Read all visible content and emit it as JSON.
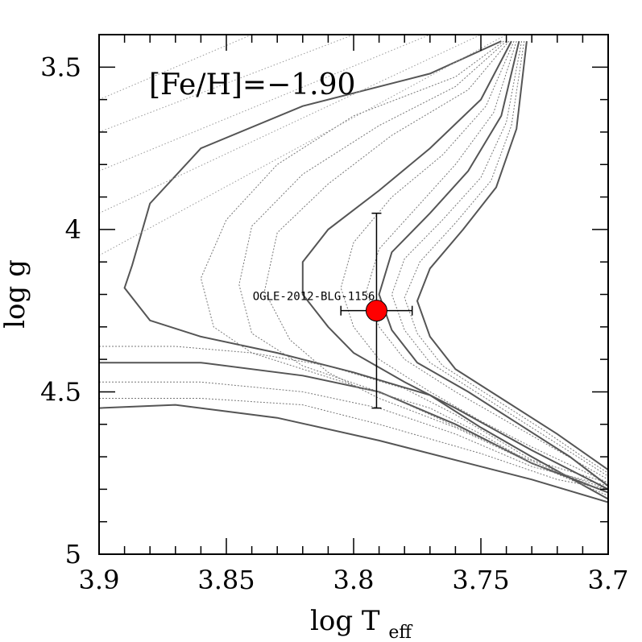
{
  "chart_data": {
    "type": "line",
    "xlabel": "log T",
    "xlabel_sub": "eff",
    "ylabel": "log g",
    "xlim": [
      3.9,
      3.7
    ],
    "ylim": [
      5.0,
      3.4
    ],
    "x_ticks": [
      3.9,
      3.85,
      3.8,
      3.75,
      3.7
    ],
    "x_tick_labels": [
      "3.9",
      "3.85",
      "3.8",
      "3.75",
      "3.7"
    ],
    "y_ticks": [
      3.5,
      4.0,
      4.5,
      5.0
    ],
    "y_tick_labels": [
      "3.5",
      "4",
      "4.5",
      "5"
    ],
    "annotation": "[Fe/H]=−1.90",
    "isochrones": [
      {
        "style": "solid",
        "points": [
          [
            3.9,
            4.55
          ],
          [
            3.87,
            4.54
          ],
          [
            3.83,
            4.58
          ],
          [
            3.79,
            4.65
          ],
          [
            3.75,
            4.73
          ],
          [
            3.73,
            4.77
          ],
          [
            3.7,
            4.84
          ]
        ]
      },
      {
        "style": "dotted",
        "points": [
          [
            3.9,
            4.52
          ],
          [
            3.86,
            4.52
          ],
          [
            3.82,
            4.54
          ],
          [
            3.79,
            4.6
          ],
          [
            3.75,
            4.69
          ],
          [
            3.72,
            4.77
          ],
          [
            3.7,
            4.8
          ]
        ]
      },
      {
        "style": "dotted",
        "points": [
          [
            3.9,
            4.47
          ],
          [
            3.86,
            4.47
          ],
          [
            3.82,
            4.5
          ],
          [
            3.79,
            4.55
          ],
          [
            3.76,
            4.63
          ],
          [
            3.73,
            4.73
          ],
          [
            3.7,
            4.79
          ]
        ]
      },
      {
        "style": "solid",
        "points": [
          [
            3.9,
            4.41
          ],
          [
            3.86,
            4.41
          ],
          [
            3.82,
            4.45
          ],
          [
            3.79,
            4.5
          ],
          [
            3.76,
            4.6
          ],
          [
            3.73,
            4.72
          ],
          [
            3.7,
            4.81
          ]
        ]
      },
      {
        "style": "dotted",
        "points": [
          [
            3.9,
            4.36
          ],
          [
            3.87,
            4.36
          ],
          [
            3.84,
            4.38
          ],
          [
            3.81,
            4.42
          ],
          [
            3.78,
            4.49
          ],
          [
            3.76,
            4.57
          ],
          [
            3.73,
            4.71
          ],
          [
            3.7,
            4.78
          ]
        ]
      },
      {
        "style": "solid",
        "points": [
          [
            3.742,
            3.42
          ],
          [
            3.77,
            3.52
          ],
          [
            3.82,
            3.62
          ],
          [
            3.86,
            3.75
          ],
          [
            3.88,
            3.92
          ],
          [
            3.887,
            4.11
          ],
          [
            3.89,
            4.18
          ],
          [
            3.88,
            4.28
          ],
          [
            3.86,
            4.33
          ],
          [
            3.83,
            4.38
          ],
          [
            3.8,
            4.44
          ],
          [
            3.77,
            4.51
          ],
          [
            3.75,
            4.61
          ],
          [
            3.73,
            4.7
          ],
          [
            3.7,
            4.83
          ]
        ]
      },
      {
        "style": "dotted",
        "points": [
          [
            3.741,
            3.42
          ],
          [
            3.76,
            3.53
          ],
          [
            3.8,
            3.65
          ],
          [
            3.83,
            3.8
          ],
          [
            3.85,
            3.97
          ],
          [
            3.86,
            4.15
          ],
          [
            3.855,
            4.3
          ],
          [
            3.84,
            4.38
          ],
          [
            3.8,
            4.48
          ],
          [
            3.77,
            4.55
          ],
          [
            3.75,
            4.63
          ],
          [
            3.73,
            4.72
          ],
          [
            3.7,
            4.82
          ]
        ]
      },
      {
        "style": "dotted",
        "points": [
          [
            3.74,
            3.42
          ],
          [
            3.76,
            3.56
          ],
          [
            3.79,
            3.68
          ],
          [
            3.82,
            3.83
          ],
          [
            3.84,
            3.99
          ],
          [
            3.845,
            4.17
          ],
          [
            3.84,
            4.32
          ],
          [
            3.82,
            4.42
          ],
          [
            3.79,
            4.5
          ],
          [
            3.77,
            4.57
          ],
          [
            3.74,
            4.68
          ],
          [
            3.7,
            4.81
          ]
        ]
      },
      {
        "style": "dotted",
        "points": [
          [
            3.739,
            3.42
          ],
          [
            3.755,
            3.57
          ],
          [
            3.785,
            3.71
          ],
          [
            3.81,
            3.86
          ],
          [
            3.83,
            4.01
          ],
          [
            3.835,
            4.19
          ],
          [
            3.825,
            4.34
          ],
          [
            3.81,
            4.44
          ],
          [
            3.79,
            4.52
          ],
          [
            3.76,
            4.61
          ],
          [
            3.73,
            4.72
          ],
          [
            3.7,
            4.8
          ]
        ]
      },
      {
        "style": "solid",
        "points": [
          [
            3.738,
            3.42
          ],
          [
            3.75,
            3.6
          ],
          [
            3.77,
            3.75
          ],
          [
            3.79,
            3.88
          ],
          [
            3.81,
            4.0
          ],
          [
            3.82,
            4.1
          ],
          [
            3.82,
            4.2
          ],
          [
            3.81,
            4.3
          ],
          [
            3.8,
            4.38
          ],
          [
            3.78,
            4.47
          ],
          [
            3.76,
            4.55
          ],
          [
            3.73,
            4.68
          ],
          [
            3.7,
            4.8
          ]
        ]
      },
      {
        "style": "dotted",
        "points": [
          [
            3.737,
            3.42
          ],
          [
            3.748,
            3.62
          ],
          [
            3.765,
            3.77
          ],
          [
            3.785,
            3.9
          ],
          [
            3.8,
            4.04
          ],
          [
            3.805,
            4.18
          ],
          [
            3.8,
            4.3
          ],
          [
            3.79,
            4.4
          ],
          [
            3.77,
            4.5
          ],
          [
            3.75,
            4.59
          ],
          [
            3.73,
            4.67
          ],
          [
            3.7,
            4.78
          ]
        ]
      },
      {
        "style": "dotted",
        "points": [
          [
            3.736,
            3.42
          ],
          [
            3.745,
            3.64
          ],
          [
            3.76,
            3.8
          ],
          [
            3.775,
            3.93
          ],
          [
            3.79,
            4.06
          ],
          [
            3.795,
            4.19
          ],
          [
            3.79,
            4.3
          ],
          [
            3.78,
            4.4
          ],
          [
            3.76,
            4.5
          ],
          [
            3.74,
            4.59
          ],
          [
            3.72,
            4.68
          ],
          [
            3.7,
            4.77
          ]
        ]
      },
      {
        "style": "solid",
        "points": [
          [
            3.735,
            3.42
          ],
          [
            3.742,
            3.65
          ],
          [
            3.755,
            3.82
          ],
          [
            3.77,
            3.95
          ],
          [
            3.785,
            4.07
          ],
          [
            3.79,
            4.2
          ],
          [
            3.785,
            4.31
          ],
          [
            3.775,
            4.41
          ],
          [
            3.755,
            4.5
          ],
          [
            3.735,
            4.6
          ],
          [
            3.715,
            4.7
          ],
          [
            3.7,
            4.79
          ]
        ]
      },
      {
        "style": "dotted",
        "points": [
          [
            3.734,
            3.42
          ],
          [
            3.74,
            3.67
          ],
          [
            3.75,
            3.84
          ],
          [
            3.765,
            3.97
          ],
          [
            3.78,
            4.09
          ],
          [
            3.785,
            4.2
          ],
          [
            3.78,
            4.31
          ],
          [
            3.77,
            4.41
          ],
          [
            3.75,
            4.51
          ],
          [
            3.73,
            4.61
          ],
          [
            3.71,
            4.71
          ],
          [
            3.7,
            4.76
          ]
        ]
      },
      {
        "style": "dotted",
        "points": [
          [
            3.733,
            3.42
          ],
          [
            3.738,
            3.68
          ],
          [
            3.746,
            3.85
          ],
          [
            3.76,
            3.98
          ],
          [
            3.774,
            4.1
          ],
          [
            3.78,
            4.21
          ],
          [
            3.775,
            4.32
          ],
          [
            3.765,
            4.42
          ],
          [
            3.745,
            4.52
          ],
          [
            3.725,
            4.62
          ],
          [
            3.71,
            4.7
          ],
          [
            3.7,
            4.75
          ]
        ]
      },
      {
        "style": "solid",
        "points": [
          [
            3.732,
            3.42
          ],
          [
            3.736,
            3.69
          ],
          [
            3.744,
            3.87
          ],
          [
            3.757,
            4.0
          ],
          [
            3.77,
            4.12
          ],
          [
            3.775,
            4.22
          ],
          [
            3.77,
            4.33
          ],
          [
            3.76,
            4.43
          ],
          [
            3.74,
            4.53
          ],
          [
            3.72,
            4.63
          ],
          [
            3.7,
            4.74
          ]
        ]
      }
    ],
    "points": [
      {
        "label": "OGLE-2012-BLG-1156",
        "x": 3.791,
        "y": 4.25,
        "x_err": 0.014,
        "y_err_low": 0.3,
        "y_err_high": 0.3,
        "color": "#ff0000"
      }
    ]
  }
}
